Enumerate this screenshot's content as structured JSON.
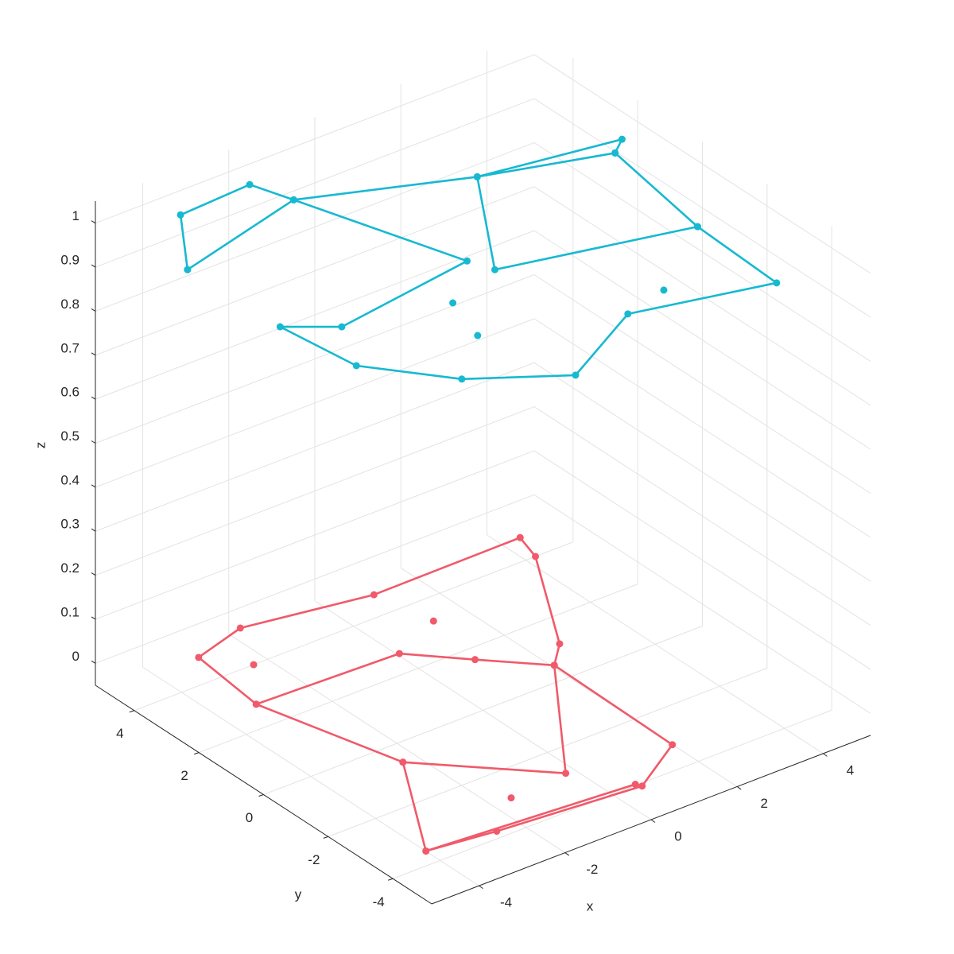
{
  "chart_data": {
    "type": "line3d",
    "xlabel": "x",
    "ylabel": "y",
    "zlabel": "z",
    "xlim": [
      -5.1,
      5.1
    ],
    "ylim": [
      -5.2,
      5.2
    ],
    "zlim": [
      -0.05,
      1.05
    ],
    "xticks": [
      -4,
      -2,
      0,
      2,
      4
    ],
    "yticks": [
      -4,
      -2,
      0,
      2,
      4
    ],
    "zticks": [
      0,
      0.1,
      0.2,
      0.3,
      0.4,
      0.5,
      0.6,
      0.7,
      0.8,
      0.9,
      1
    ],
    "grid": true,
    "series": [
      {
        "color": "#17b9d1",
        "x": [
          -4.8,
          -3.67,
          -1.98,
          -1.68,
          -4.8,
          null,
          -1.68,
          -0.52,
          -3.83,
          -4.73,
          -4.49,
          -3.25,
          -1.5,
          0.64,
          3.51,
          3.62,
          -0.31,
          1.52,
          -1.68,
          null,
          3.62,
          4.07,
          4.48,
          1.52,
          4.07,
          null,
          -1.67,
          null,
          -2.04,
          null,
          1.7
        ],
        "y": [
          2.75,
          4.47,
          4.58,
          3.62,
          2.75,
          null,
          3.62,
          -0.2,
          -0.73,
          -0.02,
          -2.06,
          -3.67,
          -4.86,
          -3.63,
          -4.41,
          -1.82,
          -0.78,
          2.2,
          3.62,
          null,
          -1.82,
          1.33,
          1.66,
          2.2,
          1.33,
          null,
          -1.29,
          null,
          -2.55,
          null,
          -3.33
        ],
        "z": [
          1,
          1,
          1,
          1,
          1,
          null,
          1,
          1,
          1,
          1,
          1,
          1,
          1,
          1,
          1,
          1,
          1,
          1,
          1,
          null,
          1,
          1,
          1,
          1,
          1,
          null,
          1,
          null,
          1,
          null,
          1
        ]
      },
      {
        "color": "#f05a6a",
        "x": [
          3.93,
          3.73,
          2.12,
          1.56,
          0.53,
          -0.44,
          -3.67,
          -3.46,
          -2.19,
          0.51,
          3.93,
          null,
          1.56,
          1.5,
          0.13,
          -3.01,
          -4.49,
          -2.83,
          -3.67,
          null,
          -2.83,
          -0.7,
          1.56,
          null,
          -4.49,
          0.07,
          null,
          0.79,
          null,
          -2.82,
          null,
          -2.05
        ],
        "y": [
          4.08,
          3.34,
          0.45,
          -0.13,
          0.95,
          2.0,
          2.13,
          4.19,
          4.59,
          4.05,
          4.08,
          null,
          -0.13,
          -3.86,
          -4.75,
          -4.43,
          -4.21,
          -1.29,
          2.13,
          null,
          -1.29,
          -3.49,
          -0.13,
          null,
          -4.21,
          -4.62,
          null,
          2.58,
          null,
          3.34,
          null,
          -3.6
        ],
        "z": [
          0,
          0,
          0,
          0,
          0,
          0,
          0,
          0,
          0,
          0,
          0,
          null,
          0,
          0,
          0,
          0,
          0,
          0,
          0,
          null,
          0,
          0,
          0,
          null,
          0,
          0,
          null,
          0,
          null,
          0,
          null,
          0
        ]
      }
    ]
  }
}
